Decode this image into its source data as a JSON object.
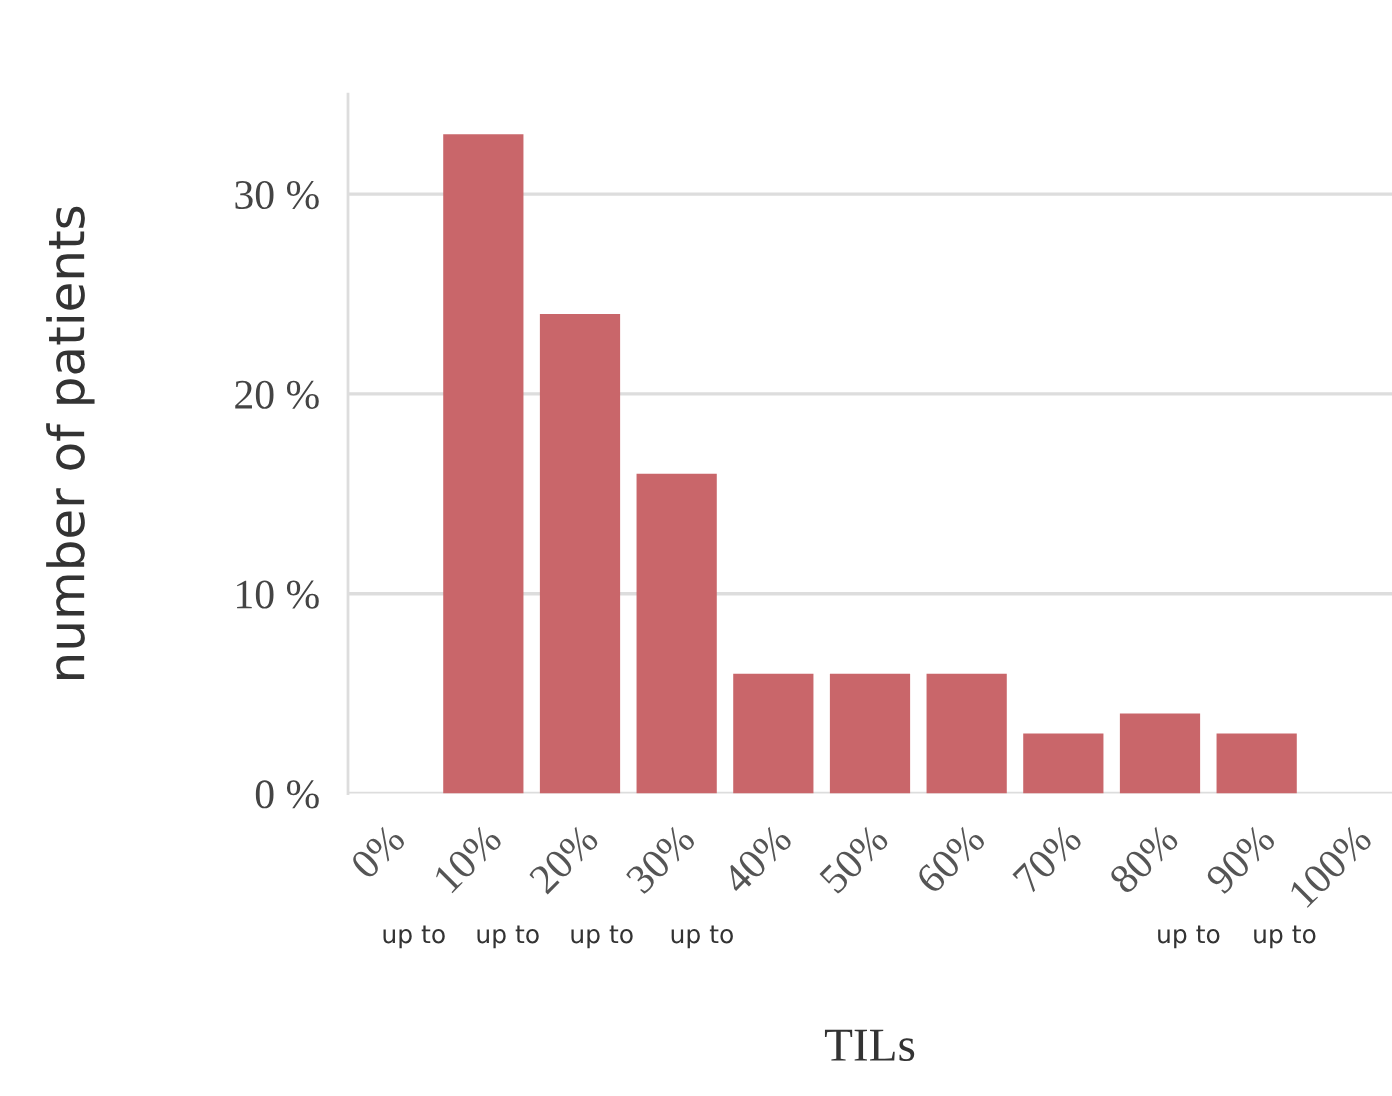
{
  "chart_data": {
    "type": "bar",
    "xlabel": "TILs",
    "ylabel": "number of patients",
    "x": [
      10,
      20,
      30,
      40,
      50,
      60,
      70,
      80,
      90
    ],
    "values": [
      33,
      24,
      16,
      6,
      6,
      6,
      3,
      4,
      3
    ],
    "color": "#c9666a",
    "xlim": [
      -4,
      104
    ],
    "xticks": [
      {
        "value": 0,
        "label": "0%"
      },
      {
        "value": 10,
        "label": "10%"
      },
      {
        "value": 20,
        "label": "20%"
      },
      {
        "value": 30,
        "label": "30%"
      },
      {
        "value": 40,
        "label": "40%"
      },
      {
        "value": 50,
        "label": "50%"
      },
      {
        "value": 60,
        "label": "60%"
      },
      {
        "value": 70,
        "label": "70%"
      },
      {
        "value": 80,
        "label": "80%"
      },
      {
        "value": 90,
        "label": "90%"
      },
      {
        "value": 100,
        "label": "100%"
      }
    ],
    "yticks": [
      {
        "value": 0,
        "label": "0 %"
      },
      {
        "value": 10,
        "label": "10 %"
      },
      {
        "value": 20,
        "label": "20 %"
      },
      {
        "value": 30,
        "label": "30 %"
      }
    ],
    "ylim": [
      0,
      35
    ],
    "grid": "y",
    "annotations": [
      "up to",
      "up to",
      "up to",
      "up to",
      "up to",
      "up to"
    ]
  }
}
